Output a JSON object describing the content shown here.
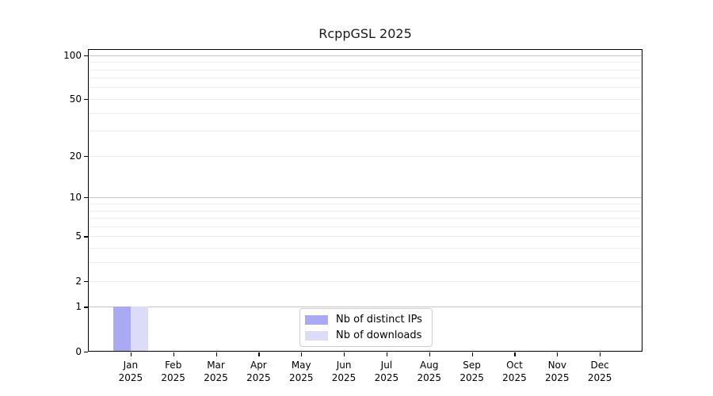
{
  "figure": {
    "title": "RcppGSL 2025"
  },
  "chart_data": {
    "type": "bar",
    "title": "RcppGSL 2025",
    "categories": [
      "Jan",
      "Feb",
      "Mar",
      "Apr",
      "May",
      "Jun",
      "Jul",
      "Aug",
      "Sep",
      "Oct",
      "Nov",
      "Dec"
    ],
    "category_year": "2025",
    "series": [
      {
        "name": "Nb of distinct IPs",
        "color": "#aaaaf2",
        "values": [
          1,
          0,
          0,
          0,
          0,
          0,
          0,
          0,
          0,
          0,
          0,
          0
        ]
      },
      {
        "name": "Nb of downloads",
        "color": "#dcdcf7",
        "values": [
          1,
          0,
          0,
          0,
          0,
          0,
          0,
          0,
          0,
          0,
          0,
          0
        ]
      }
    ],
    "xlabel": "",
    "ylabel": "",
    "y_scale": "log1p",
    "ylim": [
      0,
      110
    ],
    "y_ticks": [
      0,
      1,
      2,
      5,
      10,
      20,
      50,
      100
    ],
    "grid": "horizontal",
    "major_gridlines": [
      1,
      10,
      100
    ],
    "minor_gridlines": [
      2,
      3,
      4,
      5,
      6,
      7,
      8,
      9,
      20,
      30,
      40,
      50,
      60,
      70,
      80,
      90
    ],
    "legend_position": "inside-bottom-center"
  }
}
